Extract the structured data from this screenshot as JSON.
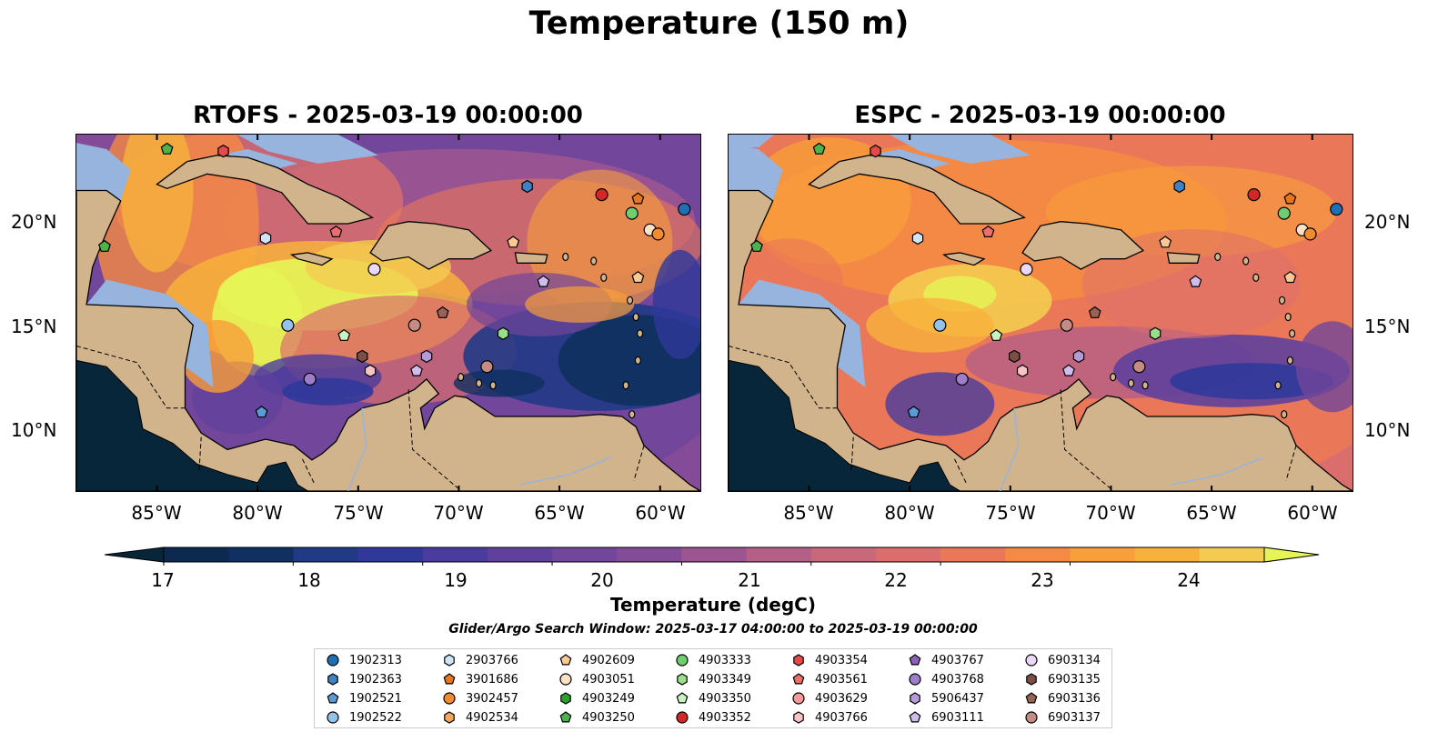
{
  "suptitle": "Temperature (150 m)",
  "panels": [
    {
      "title": "RTOFS - 2025-03-19 00:00:00"
    },
    {
      "title": "ESPC - 2025-03-19 00:00:00"
    }
  ],
  "lat_labels": [
    "20°N",
    "15°N",
    "10°N"
  ],
  "lon_labels": [
    "85°W",
    "80°W",
    "75°W",
    "70°W",
    "65°W",
    "60°W"
  ],
  "colorbar": {
    "ticks": [
      "17",
      "18",
      "19",
      "20",
      "21",
      "22",
      "23",
      "24"
    ],
    "label": "Temperature (degC)",
    "min": 17,
    "max": 24.5,
    "step": 0.5,
    "colors": [
      "#0c2a4f",
      "#0f3060",
      "#213a86",
      "#30389a",
      "#4a3c9e",
      "#5f409c",
      "#72469a",
      "#844c98",
      "#9c5591",
      "#b45f86",
      "#c9677b",
      "#db6e6c",
      "#ea7858",
      "#f58a44",
      "#f89e3a",
      "#f8b23c",
      "#f4cb50"
    ],
    "under_color": "#07263a",
    "over_color": "#e6f555"
  },
  "search_window": "Glider/Argo Search Window: 2025-03-17 04:00:00 to 2025-03-19 00:00:00",
  "colors": {
    "land": "#d1b48c",
    "ocean": "#96b4dd",
    "deep_pacific": "#07263a"
  },
  "legend": [
    {
      "id": "1902313",
      "marker": "circle",
      "color": "#1f6fb5"
    },
    {
      "id": "1902363",
      "marker": "hexagon",
      "color": "#3f82c4"
    },
    {
      "id": "1902521",
      "marker": "pentagon",
      "color": "#5a9bd6"
    },
    {
      "id": "1902522",
      "marker": "circle",
      "color": "#95c2ea"
    },
    {
      "id": "2903766",
      "marker": "hexagon",
      "color": "#cfe5f7"
    },
    {
      "id": "3901686",
      "marker": "pentagon",
      "color": "#e8761d"
    },
    {
      "id": "3902457",
      "marker": "circle",
      "color": "#f38c2e"
    },
    {
      "id": "4902534",
      "marker": "hexagon",
      "color": "#f7a65c"
    },
    {
      "id": "4902609",
      "marker": "pentagon",
      "color": "#fbc995"
    },
    {
      "id": "4903051",
      "marker": "circle",
      "color": "#fde2c3"
    },
    {
      "id": "4903249",
      "marker": "hexagon",
      "color": "#2ca02c"
    },
    {
      "id": "4903250",
      "marker": "pentagon",
      "color": "#4cb34c"
    },
    {
      "id": "4903333",
      "marker": "circle",
      "color": "#6fcf6f"
    },
    {
      "id": "4903349",
      "marker": "hexagon",
      "color": "#98df8a"
    },
    {
      "id": "4903350",
      "marker": "pentagon",
      "color": "#c8f2c0"
    },
    {
      "id": "4903352",
      "marker": "circle",
      "color": "#d62728"
    },
    {
      "id": "4903354",
      "marker": "hexagon",
      "color": "#e34a4a"
    },
    {
      "id": "4903561",
      "marker": "pentagon",
      "color": "#ee6e6e"
    },
    {
      "id": "4903629",
      "marker": "circle",
      "color": "#f59a9a"
    },
    {
      "id": "4903766",
      "marker": "hexagon",
      "color": "#fbc4c4"
    },
    {
      "id": "4903767",
      "marker": "pentagon",
      "color": "#8a62b8"
    },
    {
      "id": "4903768",
      "marker": "circle",
      "color": "#9e7dc9"
    },
    {
      "id": "5906437",
      "marker": "hexagon",
      "color": "#b69ad8"
    },
    {
      "id": "6903111",
      "marker": "pentagon",
      "color": "#d0bdee"
    },
    {
      "id": "6903134",
      "marker": "circle",
      "color": "#ead8f7"
    },
    {
      "id": "6903135",
      "marker": "hexagon",
      "color": "#7b4f45"
    },
    {
      "id": "6903136",
      "marker": "pentagon",
      "color": "#976356"
    },
    {
      "id": "6903137",
      "marker": "circle",
      "color": "#c48c84"
    }
  ],
  "markers": [
    {
      "id": "4903250",
      "lon": -84.5,
      "lat": 23.5
    },
    {
      "id": "4903354",
      "lon": -81.7,
      "lat": 23.4
    },
    {
      "id": "1902363",
      "lon": -66.6,
      "lat": 21.7
    },
    {
      "id": "4903352",
      "lon": -62.9,
      "lat": 21.3
    },
    {
      "id": "3901686",
      "lon": -61.1,
      "lat": 21.1
    },
    {
      "id": "4903333",
      "lon": -61.4,
      "lat": 20.4
    },
    {
      "id": "1902313",
      "lon": -58.8,
      "lat": 20.6
    },
    {
      "id": "4903051",
      "lon": -60.5,
      "lat": 19.6
    },
    {
      "id": "3902457",
      "lon": -60.1,
      "lat": 19.4
    },
    {
      "id": "4903250",
      "lon": -87.6,
      "lat": 18.8
    },
    {
      "id": "2903766",
      "lon": -79.6,
      "lat": 19.2
    },
    {
      "id": "4903561",
      "lon": -76.1,
      "lat": 19.5
    },
    {
      "id": "4902609",
      "lon": -67.3,
      "lat": 19.0
    },
    {
      "id": "6903134",
      "lon": -74.2,
      "lat": 17.7
    },
    {
      "id": "4902609",
      "lon": -61.1,
      "lat": 17.3
    },
    {
      "id": "6903111",
      "lon": -65.8,
      "lat": 17.1
    },
    {
      "id": "1902522",
      "lon": -78.5,
      "lat": 15.0
    },
    {
      "id": "6903137",
      "lon": -72.2,
      "lat": 15.0
    },
    {
      "id": "6903136",
      "lon": -70.8,
      "lat": 15.6
    },
    {
      "id": "4903349",
      "lon": -67.8,
      "lat": 14.6
    },
    {
      "id": "4903350",
      "lon": -75.7,
      "lat": 14.5
    },
    {
      "id": "6903135",
      "lon": -74.8,
      "lat": 13.5
    },
    {
      "id": "5906437",
      "lon": -71.6,
      "lat": 13.5
    },
    {
      "id": "4903766",
      "lon": -74.4,
      "lat": 12.8
    },
    {
      "id": "6903111",
      "lon": -72.1,
      "lat": 12.8
    },
    {
      "id": "6903137",
      "lon": -68.6,
      "lat": 13.0
    },
    {
      "id": "4903768",
      "lon": -77.4,
      "lat": 12.4
    },
    {
      "id": "1902521",
      "lon": -79.8,
      "lat": 10.8
    }
  ]
}
